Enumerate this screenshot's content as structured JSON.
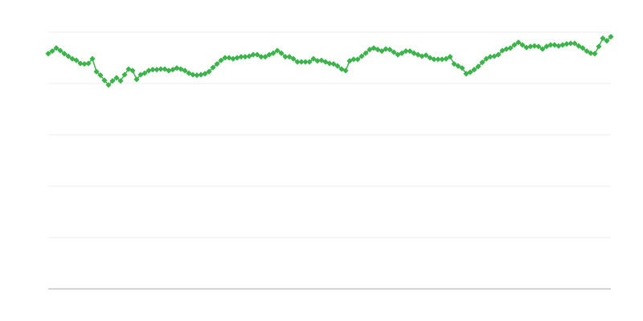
{
  "chart_data": {
    "type": "line",
    "title": "",
    "xlabel": "",
    "ylabel": "",
    "ylim": [
      0,
      5
    ],
    "grid": true,
    "legend": "none",
    "markers": "diamond",
    "color": "#3cb44b",
    "gridline_color": "#ebebeb",
    "axis_color": "#aaaaaa",
    "values": [
      4.58,
      4.63,
      4.69,
      4.64,
      4.58,
      4.53,
      4.48,
      4.45,
      4.39,
      4.38,
      4.39,
      4.48,
      4.23,
      4.16,
      4.06,
      3.97,
      4.05,
      4.11,
      4.05,
      4.17,
      4.28,
      4.25,
      4.08,
      4.17,
      4.2,
      4.25,
      4.27,
      4.27,
      4.28,
      4.28,
      4.25,
      4.27,
      4.3,
      4.28,
      4.25,
      4.2,
      4.17,
      4.16,
      4.17,
      4.19,
      4.23,
      4.31,
      4.38,
      4.45,
      4.5,
      4.5,
      4.48,
      4.5,
      4.52,
      4.52,
      4.53,
      4.56,
      4.56,
      4.52,
      4.52,
      4.56,
      4.59,
      4.64,
      4.59,
      4.52,
      4.52,
      4.48,
      4.42,
      4.42,
      4.42,
      4.42,
      4.48,
      4.44,
      4.45,
      4.42,
      4.39,
      4.38,
      4.34,
      4.28,
      4.25,
      4.44,
      4.47,
      4.47,
      4.53,
      4.59,
      4.66,
      4.69,
      4.66,
      4.63,
      4.67,
      4.66,
      4.61,
      4.56,
      4.59,
      4.63,
      4.63,
      4.59,
      4.56,
      4.53,
      4.55,
      4.5,
      4.47,
      4.47,
      4.47,
      4.48,
      4.52,
      4.38,
      4.34,
      4.3,
      4.19,
      4.22,
      4.27,
      4.33,
      4.41,
      4.48,
      4.52,
      4.53,
      4.56,
      4.64,
      4.67,
      4.69,
      4.75,
      4.8,
      4.75,
      4.7,
      4.72,
      4.73,
      4.72,
      4.67,
      4.72,
      4.75,
      4.75,
      4.73,
      4.75,
      4.77,
      4.78,
      4.78,
      4.73,
      4.69,
      4.63,
      4.59,
      4.58,
      4.72,
      4.88,
      4.83,
      4.91
    ]
  }
}
